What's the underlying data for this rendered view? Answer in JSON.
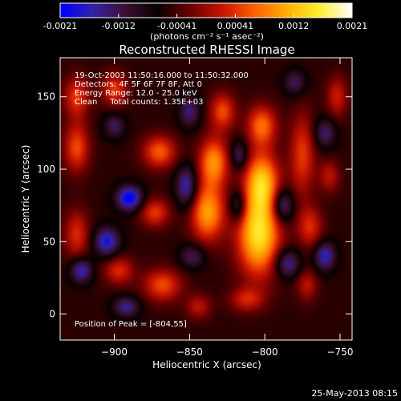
{
  "colorbar": {
    "tick_labels": [
      "-0.0021",
      "-0.0012",
      "-0.00041",
      "0.00041",
      "0.0012",
      "0.0021"
    ],
    "range": [
      -0.0021,
      0.0021
    ],
    "unit_label": "(photons cm⁻² s⁻¹ asec⁻²)",
    "stops": [
      "#0000ff",
      "#3322aa",
      "#3a1030",
      "#0a0000",
      "#6a0000",
      "#c81400",
      "#ff6000",
      "#ffb200",
      "#ffee30",
      "#ffffff"
    ]
  },
  "chart_data": {
    "type": "heatmap",
    "title": "Reconstructed RHESSI Image",
    "xlabel": "Heliocentric X (arcsec)",
    "ylabel": "Heliocentric Y (arcsec)",
    "xlim": [
      -936,
      -742
    ],
    "ylim": [
      -18,
      177
    ],
    "x_ticks": [
      -900,
      -850,
      -800,
      -750
    ],
    "x_tick_labels": [
      "−900",
      "−850",
      "−800",
      "−750"
    ],
    "y_ticks": [
      0,
      50,
      100,
      150
    ],
    "y_tick_labels": [
      "0",
      "50",
      "100",
      "150"
    ],
    "grid": false,
    "peak": {
      "x": -804,
      "y": 55
    },
    "blobs": [
      {
        "x": -804,
        "y": 55,
        "sx": 10,
        "sy": 20,
        "value": 0.0021
      },
      {
        "x": -802,
        "y": 92,
        "sx": 8,
        "sy": 14,
        "value": 0.0017
      },
      {
        "x": -802,
        "y": 130,
        "sx": 7,
        "sy": 10,
        "value": 0.0013
      },
      {
        "x": -838,
        "y": 70,
        "sx": 8,
        "sy": 14,
        "value": 0.0016
      },
      {
        "x": -834,
        "y": 105,
        "sx": 7,
        "sy": 12,
        "value": 0.0015
      },
      {
        "x": -828,
        "y": 140,
        "sx": 6,
        "sy": 9,
        "value": 0.0011
      },
      {
        "x": -870,
        "y": 112,
        "sx": 8,
        "sy": 8,
        "value": 0.0012
      },
      {
        "x": -873,
        "y": 70,
        "sx": 7,
        "sy": 7,
        "value": 0.001
      },
      {
        "x": -868,
        "y": 20,
        "sx": 9,
        "sy": 8,
        "value": 0.0011
      },
      {
        "x": -925,
        "y": 115,
        "sx": 6,
        "sy": 12,
        "value": 0.0011
      },
      {
        "x": -925,
        "y": 55,
        "sx": 6,
        "sy": 12,
        "value": 0.0009
      },
      {
        "x": -925,
        "y": 150,
        "sx": 6,
        "sy": 10,
        "value": 0.001
      },
      {
        "x": -900,
        "y": 155,
        "sx": 6,
        "sy": 8,
        "value": 0.001
      },
      {
        "x": -897,
        "y": 30,
        "sx": 7,
        "sy": 7,
        "value": 0.0009
      },
      {
        "x": -775,
        "y": 110,
        "sx": 6,
        "sy": 20,
        "value": 0.001
      },
      {
        "x": -770,
        "y": 60,
        "sx": 6,
        "sy": 10,
        "value": 0.0009
      },
      {
        "x": -772,
        "y": 20,
        "sx": 5,
        "sy": 8,
        "value": 0.0007
      },
      {
        "x": -752,
        "y": 150,
        "sx": 5,
        "sy": 10,
        "value": 0.0008
      },
      {
        "x": -757,
        "y": 95,
        "sx": 5,
        "sy": 8,
        "value": 0.0007
      },
      {
        "x": -812,
        "y": 10,
        "sx": 8,
        "sy": 6,
        "value": 0.0008
      },
      {
        "x": -844,
        "y": 5,
        "sx": 6,
        "sy": 6,
        "value": 0.0007
      },
      {
        "x": -890,
        "y": 80,
        "sx": 6,
        "sy": 6,
        "value": -0.0016
      },
      {
        "x": -905,
        "y": 50,
        "sx": 6,
        "sy": 7,
        "value": -0.0013
      },
      {
        "x": -922,
        "y": 30,
        "sx": 5,
        "sy": 6,
        "value": -0.0012
      },
      {
        "x": -892,
        "y": 5,
        "sx": 6,
        "sy": 5,
        "value": -0.001
      },
      {
        "x": -852,
        "y": 88,
        "sx": 5,
        "sy": 10,
        "value": -0.0012
      },
      {
        "x": -850,
        "y": 140,
        "sx": 5,
        "sy": 8,
        "value": -0.0009
      },
      {
        "x": -818,
        "y": 75,
        "sx": 4,
        "sy": 8,
        "value": -0.001
      },
      {
        "x": -817,
        "y": 110,
        "sx": 4,
        "sy": 7,
        "value": -0.0009
      },
      {
        "x": -788,
        "y": 75,
        "sx": 5,
        "sy": 8,
        "value": -0.0012
      },
      {
        "x": -785,
        "y": 35,
        "sx": 6,
        "sy": 7,
        "value": -0.0011
      },
      {
        "x": -760,
        "y": 40,
        "sx": 5,
        "sy": 7,
        "value": -0.0012
      },
      {
        "x": -760,
        "y": 125,
        "sx": 5,
        "sy": 7,
        "value": -0.0009
      },
      {
        "x": -848,
        "y": 40,
        "sx": 6,
        "sy": 6,
        "value": -0.0008
      },
      {
        "x": -780,
        "y": 160,
        "sx": 5,
        "sy": 6,
        "value": -0.0008
      },
      {
        "x": -900,
        "y": 130,
        "sx": 5,
        "sy": 6,
        "value": -0.0008
      }
    ],
    "annotations": [
      "19-Oct-2003 11:50:16.000 to 11:50:32.000",
      "Detectors: 4F 5F 6F 7F 8F, Att 0",
      "Energy Range: 12.0 - 25.0 keV",
      "Clean     Total counts: 1.35E+03"
    ],
    "peak_label": "Position of Peak = [-804,55]"
  },
  "footer": {
    "timestamp": "25-May-2013 08:15"
  }
}
